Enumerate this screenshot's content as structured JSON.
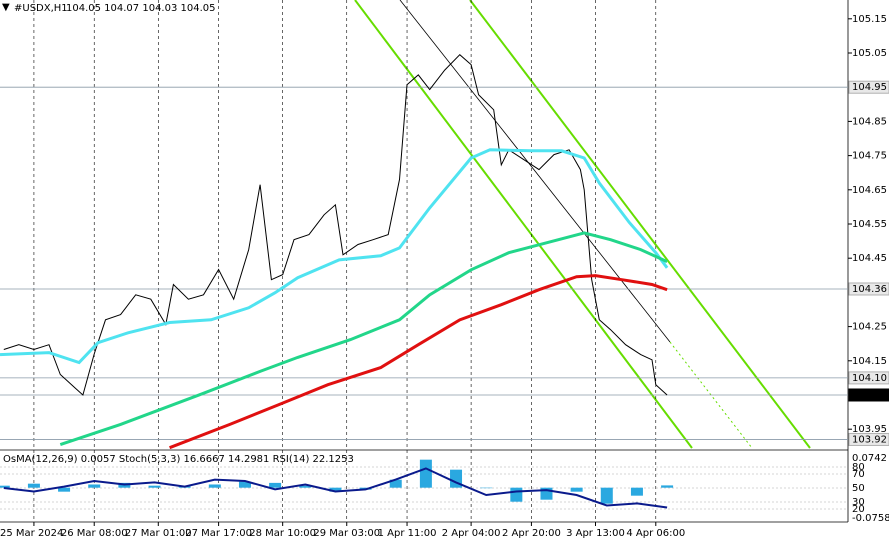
{
  "chart_data": {
    "type": "line",
    "title": "#USDX,H1",
    "ohlc": "104.05 104.07 104.03 104.05",
    "xlim": [
      -9,
      216
    ],
    "xticks": [
      {
        "value": 0,
        "label": "25 Mar 2024"
      },
      {
        "value": 16,
        "label": "26 Mar 08:00"
      },
      {
        "value": 33,
        "label": "27 Mar 01:00"
      },
      {
        "value": 49,
        "label": "27 Mar 17:00"
      },
      {
        "value": 66,
        "label": "28 Mar 10:00"
      },
      {
        "value": 83,
        "label": "29 Mar 03:00"
      },
      {
        "value": 99,
        "label": "1 Apr 11:00"
      },
      {
        "value": 116,
        "label": "2 Apr 04:00"
      },
      {
        "value": 132,
        "label": "2 Apr 20:00"
      },
      {
        "value": 149,
        "label": "3 Apr 13:00"
      },
      {
        "value": 165,
        "label": "4 Apr 06:00"
      }
    ],
    "ylim": [
      103.895,
      105.205
    ],
    "yticks": [
      105.15,
      105.05,
      104.85,
      104.75,
      104.65,
      104.55,
      104.45,
      104.25,
      104.15,
      103.95
    ],
    "levels": [
      104.95,
      104.36,
      {
        "value": 104.1,
        "label": "104.10"
      },
      104.05,
      103.92
    ],
    "current": 104.05,
    "series": [
      {
        "color": "#000000",
        "x": [
          -8,
          -4,
          0,
          4,
          7,
          11,
          13,
          16,
          19,
          23,
          27,
          31,
          35,
          37,
          41,
          45,
          49,
          53,
          57,
          60,
          63,
          66,
          69,
          73,
          77,
          80,
          82,
          86,
          90,
          94,
          97,
          99,
          102,
          105,
          109,
          113,
          116,
          118,
          122,
          124,
          126,
          130,
          134,
          138,
          142,
          145,
          146,
          148,
          150,
          153,
          157,
          161,
          164,
          165,
          168
        ],
        "values": [
          104.183,
          104.197,
          104.183,
          104.197,
          104.11,
          104.07,
          104.05,
          104.17,
          104.27,
          104.285,
          104.343,
          104.33,
          104.256,
          104.373,
          104.33,
          104.343,
          104.417,
          104.33,
          104.475,
          104.665,
          104.387,
          104.402,
          104.504,
          104.519,
          104.577,
          104.606,
          104.46,
          104.49,
          104.504,
          104.519,
          104.68,
          104.957,
          104.986,
          104.943,
          105.0,
          105.045,
          105.016,
          104.928,
          104.884,
          104.723,
          104.767,
          104.738,
          104.709,
          104.753,
          104.767,
          104.709,
          104.65,
          104.387,
          104.27,
          104.241,
          104.197,
          104.168,
          104.153,
          104.08,
          104.05
        ]
      },
      {
        "color": "#4fe3f0",
        "x": [
          -9,
          4,
          12,
          17,
          25,
          36,
          47,
          57,
          64,
          70,
          81,
          92,
          97,
          105,
          116,
          121,
          132,
          140,
          146,
          150,
          158,
          165,
          168
        ],
        "values": [
          104.168,
          104.174,
          104.145,
          104.203,
          104.232,
          104.262,
          104.27,
          104.305,
          104.349,
          104.393,
          104.445,
          104.457,
          104.48,
          104.597,
          104.743,
          104.767,
          104.764,
          104.764,
          104.743,
          104.67,
          104.554,
          104.466,
          104.422
        ]
      },
      {
        "color": "#22d68a",
        "x": [
          7,
          23,
          44,
          60,
          70,
          84,
          97,
          105,
          116,
          126,
          137,
          146,
          153,
          161,
          168
        ],
        "values": [
          103.905,
          103.964,
          104.051,
          104.119,
          104.16,
          104.212,
          104.27,
          104.343,
          104.416,
          104.466,
          104.498,
          104.524,
          104.504,
          104.475,
          104.44
        ]
      },
      {
        "color": "#e01010",
        "x": [
          36,
          52,
          65,
          78,
          92,
          102,
          113,
          124,
          134,
          144,
          149,
          156,
          164,
          168
        ],
        "values": [
          103.896,
          103.964,
          104.022,
          104.08,
          104.13,
          104.197,
          104.27,
          104.314,
          104.358,
          104.396,
          104.399,
          104.387,
          104.373,
          104.358
        ]
      }
    ],
    "indicator": {
      "label": "OsMA(12,26,9) 0.0057  Stoch(5,3,3) 16.6667 14.2981  RSI(14) 22.1253",
      "ylim": [
        0,
        100
      ],
      "yticks": [
        80,
        70,
        50,
        30,
        20
      ],
      "osma_lim": [
        -0.0758,
        0.0742
      ],
      "osma": {
        "color": "#2aa8e0",
        "x": [
          -8,
          0,
          8,
          16,
          24,
          32,
          40,
          48,
          56,
          64,
          72,
          80,
          88,
          96,
          104,
          112,
          120,
          128,
          136,
          144,
          152,
          160,
          168
        ],
        "values": [
          0.005,
          0.01,
          -0.01,
          0.008,
          0.012,
          0.005,
          0.003,
          0.008,
          0.015,
          0.012,
          0.005,
          -0.01,
          -0.005,
          0.02,
          0.07,
          0.045,
          0.0,
          -0.035,
          -0.03,
          -0.01,
          -0.04,
          -0.02,
          0.0057
        ]
      },
      "rsi": {
        "color": "#0a1a8c",
        "x": [
          -8,
          0,
          8,
          16,
          24,
          32,
          40,
          48,
          56,
          64,
          72,
          80,
          88,
          96,
          104,
          112,
          120,
          128,
          136,
          144,
          152,
          160,
          168
        ],
        "values": [
          50,
          45,
          52,
          60,
          55,
          58,
          52,
          62,
          60,
          48,
          55,
          45,
          48,
          62,
          78,
          58,
          40,
          45,
          47,
          40,
          25,
          28,
          22.1253
        ]
      }
    }
  }
}
